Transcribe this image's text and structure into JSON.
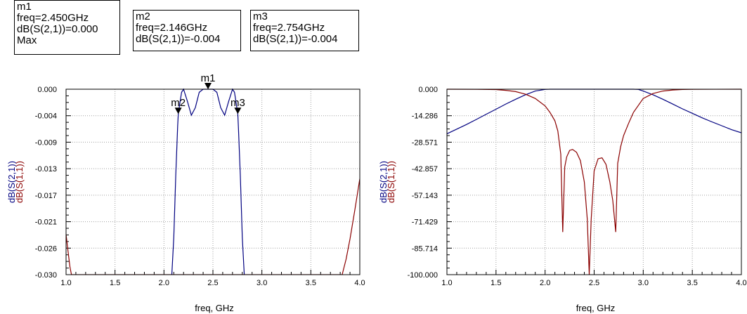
{
  "markers": [
    {
      "name": "m1",
      "freq_line": "freq=2.450GHz",
      "value_line": "dB(S(2,1))=0.000",
      "extra": "Max",
      "freq": 2.45,
      "value": 0.0
    },
    {
      "name": "m2",
      "freq_line": "freq=2.146GHz",
      "value_line": "dB(S(2,1))=-0.004",
      "freq": 2.146,
      "value": -0.004
    },
    {
      "name": "m3",
      "freq_line": "freq=2.754GHz",
      "value_line": "dB(S(2,1))=-0.004",
      "freq": 2.754,
      "value": -0.004
    }
  ],
  "colors": {
    "s21": "#000080",
    "s11": "#8b0000",
    "grid": "#a0a0a0",
    "frame": "#000000"
  },
  "chart_data": [
    {
      "type": "line",
      "xlabel": "freq, GHz",
      "ylabels": [
        "dB(S(2,1))",
        "dB(S(1,1))"
      ],
      "xlim": [
        1.0,
        4.0
      ],
      "ylim": [
        -0.03,
        0.0
      ],
      "grid": true,
      "x_ticks": [
        "1.0",
        "1.5",
        "2.0",
        "2.5",
        "3.0",
        "3.5",
        "4.0"
      ],
      "y_ticks": [
        "0.000",
        "-0.004",
        "-0.009",
        "-0.013",
        "-0.017",
        "-0.021",
        "-0.026",
        "-0.030"
      ],
      "series": [
        {
          "name": "dB(S(2,1))",
          "color": "#000080",
          "x": [
            2.08,
            2.1,
            2.12,
            2.14,
            2.146,
            2.16,
            2.18,
            2.2,
            2.24,
            2.28,
            2.32,
            2.36,
            2.4,
            2.45,
            2.5,
            2.54,
            2.58,
            2.62,
            2.66,
            2.7,
            2.72,
            2.74,
            2.754,
            2.76,
            2.78,
            2.8,
            2.82
          ],
          "y": [
            -0.03,
            -0.024,
            -0.014,
            -0.006,
            -0.004,
            -0.0025,
            -0.0005,
            0.0,
            -0.002,
            -0.0042,
            -0.003,
            -0.0005,
            0.0,
            0.0,
            0.0,
            -0.0005,
            -0.003,
            -0.0042,
            -0.002,
            0.0,
            -0.0005,
            -0.0025,
            -0.004,
            -0.006,
            -0.014,
            -0.024,
            -0.03
          ]
        },
        {
          "name": "dB(S(1,1))",
          "color": "#8b0000",
          "x": [
            1.0,
            1.02,
            1.04,
            1.055,
            3.82,
            3.86,
            3.9,
            3.95,
            4.0
          ],
          "y": [
            -0.0235,
            -0.0262,
            -0.0288,
            -0.03,
            -0.03,
            -0.0275,
            -0.0242,
            -0.0195,
            -0.0145
          ]
        }
      ]
    },
    {
      "type": "line",
      "xlabel": "freq, GHz",
      "ylabels": [
        "dB(S(2,1))",
        "dB(S(1,1))"
      ],
      "xlim": [
        1.0,
        4.0
      ],
      "ylim": [
        -100.0,
        0.0
      ],
      "grid": true,
      "x_ticks": [
        "1.0",
        "1.5",
        "2.0",
        "2.5",
        "3.0",
        "3.5",
        "4.0"
      ],
      "y_ticks": [
        "0.000",
        "-14.286",
        "-28.571",
        "-42.857",
        "-57.143",
        "-71.429",
        "-85.714",
        "-100.000"
      ],
      "series": [
        {
          "name": "dB(S(2,1))",
          "color": "#000080",
          "x": [
            1.0,
            1.1,
            1.2,
            1.3,
            1.4,
            1.5,
            1.6,
            1.7,
            1.8,
            1.9,
            2.0,
            2.05,
            2.1,
            2.2,
            2.5,
            2.8,
            2.9,
            2.95,
            3.0,
            3.1,
            3.2,
            3.3,
            3.4,
            3.5,
            3.6,
            3.7,
            3.8,
            3.9,
            4.0
          ],
          "y": [
            -24.0,
            -21.5,
            -19.0,
            -16.3,
            -13.5,
            -10.8,
            -8.0,
            -5.4,
            -3.0,
            -1.0,
            -0.1,
            0.0,
            0.0,
            0.0,
            0.0,
            0.0,
            0.0,
            -0.1,
            -1.0,
            -3.0,
            -5.4,
            -8.0,
            -10.6,
            -13.0,
            -15.4,
            -17.6,
            -19.7,
            -21.8,
            -23.5
          ]
        },
        {
          "name": "dB(S(1,1))",
          "color": "#8b0000",
          "x": [
            1.0,
            1.3,
            1.5,
            1.6,
            1.7,
            1.8,
            1.9,
            2.0,
            2.05,
            2.1,
            2.13,
            2.16,
            2.18,
            2.2,
            2.22,
            2.25,
            2.28,
            2.32,
            2.36,
            2.4,
            2.43,
            2.45,
            2.47,
            2.5,
            2.54,
            2.58,
            2.62,
            2.66,
            2.69,
            2.72,
            2.74,
            2.77,
            2.8,
            2.85,
            2.9,
            3.0,
            3.1,
            3.2,
            3.3,
            3.4,
            3.5,
            4.0
          ],
          "y": [
            0.0,
            -0.03,
            -0.2,
            -0.6,
            -1.3,
            -2.7,
            -5.0,
            -9.0,
            -12.5,
            -17.0,
            -22.5,
            -35.0,
            -77.0,
            -42.0,
            -36.5,
            -33.0,
            -32.5,
            -34.0,
            -38.5,
            -50.0,
            -70.0,
            -100.0,
            -70.0,
            -44.0,
            -37.5,
            -37.0,
            -40.5,
            -50.0,
            -60.0,
            -77.0,
            -40.0,
            -31.0,
            -25.0,
            -18.5,
            -12.5,
            -5.0,
            -2.3,
            -1.0,
            -0.4,
            -0.15,
            -0.05,
            0.0
          ]
        }
      ]
    }
  ]
}
